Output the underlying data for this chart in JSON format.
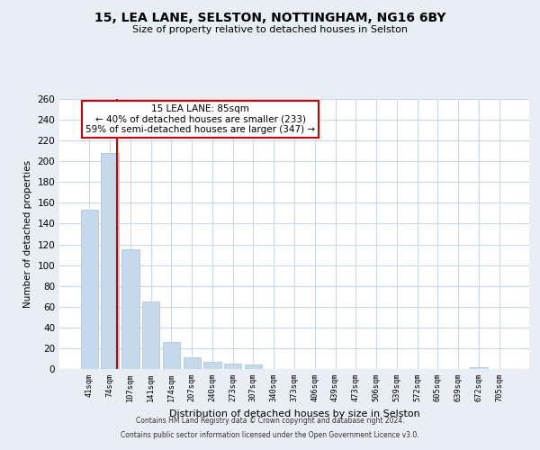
{
  "title": "15, LEA LANE, SELSTON, NOTTINGHAM, NG16 6BY",
  "subtitle": "Size of property relative to detached houses in Selston",
  "xlabel": "Distribution of detached houses by size in Selston",
  "ylabel": "Number of detached properties",
  "bar_labels": [
    "41sqm",
    "74sqm",
    "107sqm",
    "141sqm",
    "174sqm",
    "207sqm",
    "240sqm",
    "273sqm",
    "307sqm",
    "340sqm",
    "373sqm",
    "406sqm",
    "439sqm",
    "473sqm",
    "506sqm",
    "539sqm",
    "572sqm",
    "605sqm",
    "639sqm",
    "672sqm",
    "705sqm"
  ],
  "bar_values": [
    153,
    208,
    115,
    65,
    26,
    11,
    7,
    5,
    4,
    0,
    0,
    0,
    0,
    0,
    0,
    0,
    0,
    0,
    0,
    2,
    0
  ],
  "bar_color": "#c6d9ec",
  "bar_edgecolor": "#a8c0d8",
  "ylim": [
    0,
    260
  ],
  "yticks": [
    0,
    20,
    40,
    60,
    80,
    100,
    120,
    140,
    160,
    180,
    200,
    220,
    240,
    260
  ],
  "vline_color": "#cc0000",
  "annotation_text": "15 LEA LANE: 85sqm\n← 40% of detached houses are smaller (233)\n59% of semi-detached houses are larger (347) →",
  "annotation_box_color": "#cc0000",
  "footnote1": "Contains HM Land Registry data © Crown copyright and database right 2024.",
  "footnote2": "Contains public sector information licensed under the Open Government Licence v3.0.",
  "background_color": "#e8eef4",
  "plot_background": "#ffffff",
  "grid_color": "#c8d8e8"
}
